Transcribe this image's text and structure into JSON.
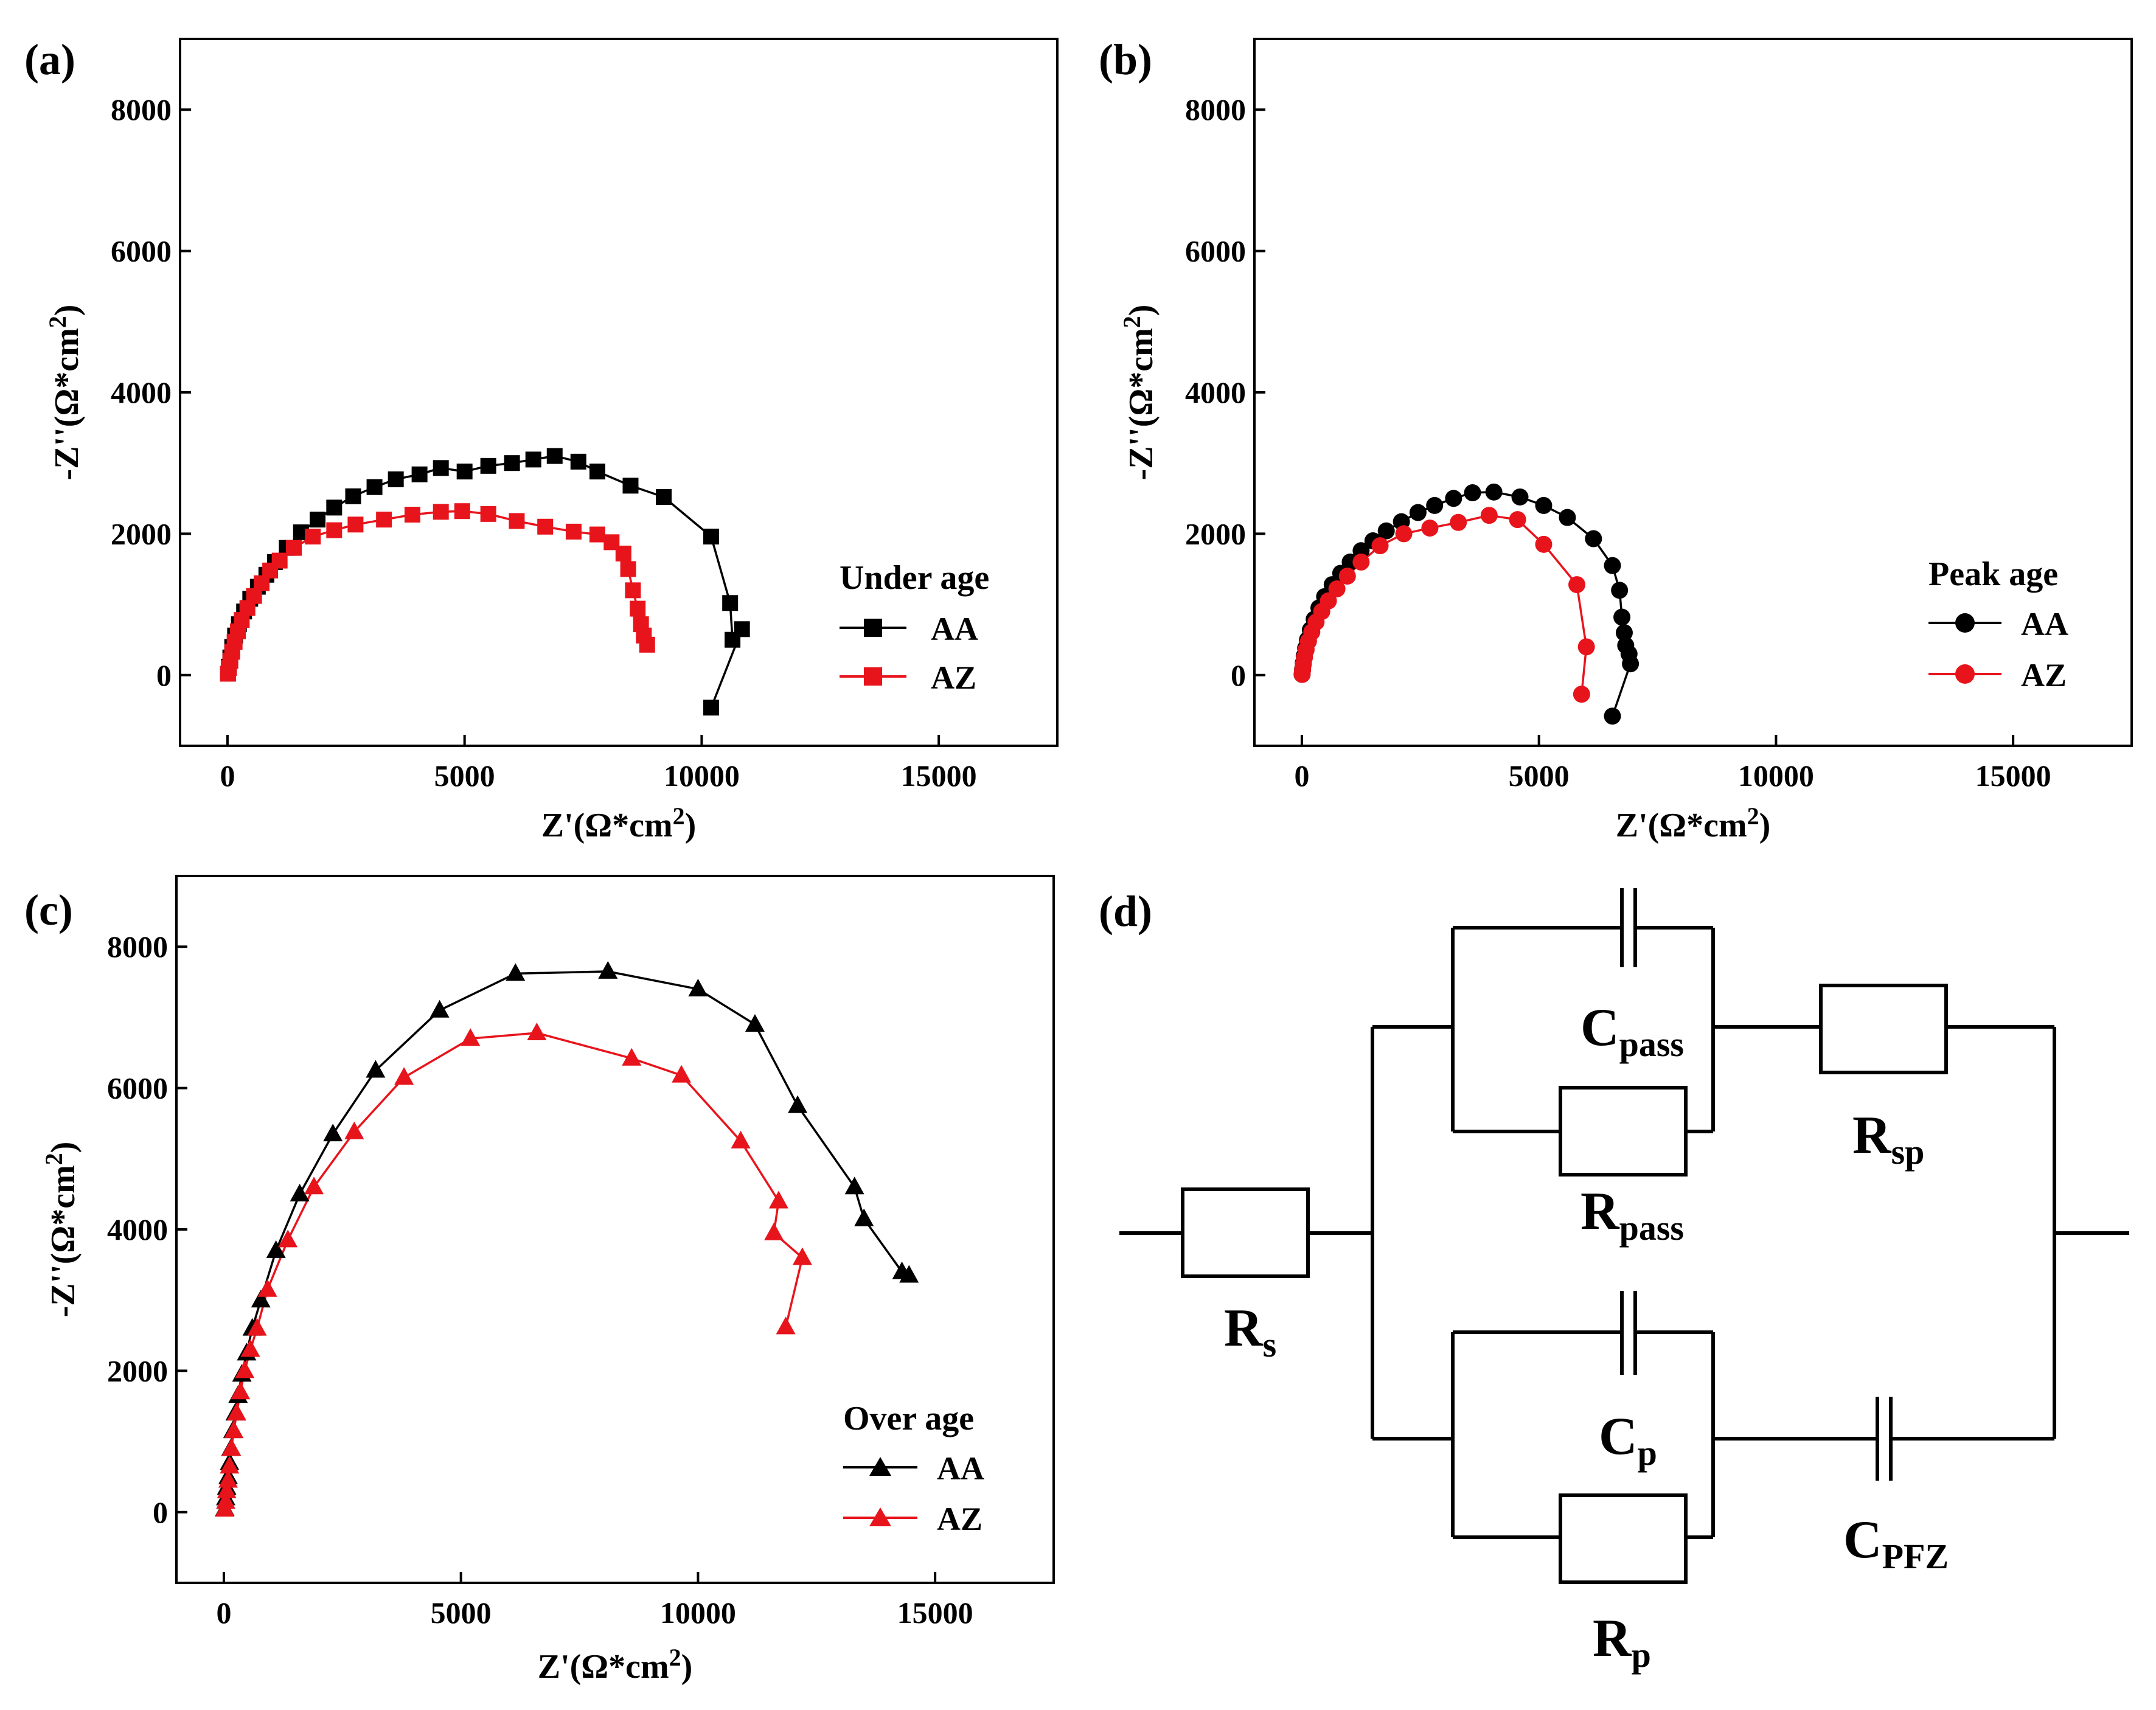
{
  "panels": {
    "a": {
      "label": "(a)"
    },
    "b": {
      "label": "(b)"
    },
    "c": {
      "label": "(c)"
    },
    "d": {
      "label": "(d)"
    }
  },
  "chart_data": [
    {
      "id": "a",
      "type": "scatter",
      "title": "",
      "xlabel": "Z'(Ω*cm2)",
      "ylabel": "-Z''(Ω*cm2)",
      "xlim": [
        -1000,
        17500
      ],
      "ylim": [
        -1000,
        9000
      ],
      "xticks": [
        0,
        5000,
        10000,
        15000
      ],
      "yticks": [
        0,
        2000,
        4000,
        6000,
        8000
      ],
      "marker": "square",
      "legend_title": "Under age",
      "legend_position": "right",
      "series": [
        {
          "name": "AA",
          "color": "#000000",
          "points": [
            [
              10,
              20
            ],
            [
              30,
              120
            ],
            [
              60,
              250
            ],
            [
              100,
              400
            ],
            [
              160,
              560
            ],
            [
              240,
              720
            ],
            [
              350,
              900
            ],
            [
              480,
              1080
            ],
            [
              640,
              1250
            ],
            [
              820,
              1420
            ],
            [
              1000,
              1600
            ],
            [
              1250,
              1800
            ],
            [
              1550,
              2020
            ],
            [
              1900,
              2200
            ],
            [
              2250,
              2370
            ],
            [
              2650,
              2530
            ],
            [
              3100,
              2660
            ],
            [
              3550,
              2770
            ],
            [
              4050,
              2840
            ],
            [
              4500,
              2930
            ],
            [
              5000,
              2880
            ],
            [
              5500,
              2960
            ],
            [
              6000,
              3000
            ],
            [
              6450,
              3050
            ],
            [
              6900,
              3100
            ],
            [
              7400,
              3020
            ],
            [
              7800,
              2880
            ],
            [
              8500,
              2680
            ],
            [
              9200,
              2520
            ],
            [
              10200,
              1960
            ],
            [
              10600,
              1020
            ],
            [
              10650,
              500
            ],
            [
              10850,
              650
            ],
            [
              10200,
              -460
            ]
          ]
        },
        {
          "name": "AZ",
          "color": "#e8141c",
          "points": [
            [
              10,
              20
            ],
            [
              30,
              100
            ],
            [
              60,
              200
            ],
            [
              100,
              330
            ],
            [
              150,
              470
            ],
            [
              220,
              620
            ],
            [
              300,
              780
            ],
            [
              420,
              950
            ],
            [
              560,
              1120
            ],
            [
              720,
              1300
            ],
            [
              900,
              1480
            ],
            [
              1100,
              1620
            ],
            [
              1400,
              1800
            ],
            [
              1800,
              1960
            ],
            [
              2250,
              2050
            ],
            [
              2700,
              2130
            ],
            [
              3300,
              2200
            ],
            [
              3900,
              2270
            ],
            [
              4500,
              2310
            ],
            [
              4950,
              2320
            ],
            [
              5500,
              2280
            ],
            [
              6100,
              2180
            ],
            [
              6700,
              2100
            ],
            [
              7300,
              2030
            ],
            [
              7800,
              1990
            ],
            [
              8100,
              1880
            ],
            [
              8350,
              1720
            ],
            [
              8450,
              1500
            ],
            [
              8550,
              1200
            ],
            [
              8650,
              940
            ],
            [
              8720,
              720
            ],
            [
              8780,
              560
            ],
            [
              8850,
              430
            ]
          ]
        }
      ]
    },
    {
      "id": "b",
      "type": "scatter",
      "title": "",
      "xlabel": "Z'(Ω*cm2)",
      "ylabel": "-Z''(Ω*cm2)",
      "xlim": [
        -1000,
        17500
      ],
      "ylim": [
        -1000,
        9000
      ],
      "xticks": [
        0,
        5000,
        10000,
        15000
      ],
      "yticks": [
        0,
        2000,
        4000,
        6000,
        8000
      ],
      "marker": "circle",
      "legend_title": "Peak age",
      "legend_position": "right",
      "series": [
        {
          "name": "AA",
          "color": "#000000",
          "points": [
            [
              5,
              10
            ],
            [
              15,
              80
            ],
            [
              30,
              170
            ],
            [
              50,
              270
            ],
            [
              80,
              380
            ],
            [
              120,
              500
            ],
            [
              180,
              640
            ],
            [
              260,
              790
            ],
            [
              360,
              950
            ],
            [
              480,
              1110
            ],
            [
              640,
              1280
            ],
            [
              820,
              1440
            ],
            [
              1020,
              1600
            ],
            [
              1250,
              1760
            ],
            [
              1500,
              1900
            ],
            [
              1780,
              2040
            ],
            [
              2100,
              2170
            ],
            [
              2450,
              2300
            ],
            [
              2800,
              2400
            ],
            [
              3200,
              2500
            ],
            [
              3600,
              2580
            ],
            [
              4050,
              2590
            ],
            [
              4600,
              2520
            ],
            [
              5100,
              2400
            ],
            [
              5600,
              2230
            ],
            [
              6150,
              1930
            ],
            [
              6550,
              1550
            ],
            [
              6700,
              1200
            ],
            [
              6750,
              820
            ],
            [
              6800,
              600
            ],
            [
              6830,
              420
            ],
            [
              6900,
              300
            ],
            [
              6930,
              160
            ],
            [
              6550,
              -580
            ]
          ]
        },
        {
          "name": "AZ",
          "color": "#e8141c",
          "points": [
            [
              5,
              10
            ],
            [
              15,
              70
            ],
            [
              30,
              150
            ],
            [
              55,
              250
            ],
            [
              90,
              360
            ],
            [
              140,
              480
            ],
            [
              210,
              610
            ],
            [
              300,
              750
            ],
            [
              420,
              900
            ],
            [
              560,
              1050
            ],
            [
              740,
              1220
            ],
            [
              960,
              1400
            ],
            [
              1250,
              1600
            ],
            [
              1650,
              1830
            ],
            [
              2150,
              2000
            ],
            [
              2700,
              2080
            ],
            [
              3300,
              2160
            ],
            [
              3950,
              2260
            ],
            [
              4550,
              2200
            ],
            [
              5100,
              1850
            ],
            [
              5800,
              1280
            ],
            [
              6000,
              400
            ],
            [
              5900,
              -270
            ]
          ]
        }
      ]
    },
    {
      "id": "c",
      "type": "scatter",
      "title": "",
      "xlabel": "Z'(Ω*cm2)",
      "ylabel": "-Z''(Ω*cm2)",
      "xlim": [
        -1000,
        17500
      ],
      "ylim": [
        -1000,
        9000
      ],
      "xticks": [
        0,
        5000,
        10000,
        15000
      ],
      "yticks": [
        0,
        2000,
        4000,
        6000,
        8000
      ],
      "marker": "triangle",
      "legend_title": "Over age",
      "legend_position": "bottom-right",
      "series": [
        {
          "name": "AA",
          "color": "#000000",
          "points": [
            [
              20,
              50
            ],
            [
              40,
              200
            ],
            [
              60,
              350
            ],
            [
              90,
              500
            ],
            [
              120,
              700
            ],
            [
              150,
              900
            ],
            [
              190,
              1150
            ],
            [
              240,
              1400
            ],
            [
              300,
              1650
            ],
            [
              380,
              1950
            ],
            [
              480,
              2250
            ],
            [
              600,
              2600
            ],
            [
              780,
              3000
            ],
            [
              1100,
              3700
            ],
            [
              1600,
              4500
            ],
            [
              2300,
              5350
            ],
            [
              3200,
              6250
            ],
            [
              4550,
              7100
            ],
            [
              6150,
              7620
            ],
            [
              8100,
              7650
            ],
            [
              10000,
              7400
            ],
            [
              11200,
              6900
            ],
            [
              12100,
              5750
            ],
            [
              13300,
              4600
            ],
            [
              13500,
              4150
            ],
            [
              14300,
              3400
            ],
            [
              14450,
              3350
            ]
          ]
        },
        {
          "name": "AZ",
          "color": "#e8141c",
          "points": [
            [
              20,
              40
            ],
            [
              40,
              150
            ],
            [
              60,
              300
            ],
            [
              90,
              450
            ],
            [
              120,
              650
            ],
            [
              160,
              900
            ],
            [
              210,
              1150
            ],
            [
              270,
              1400
            ],
            [
              350,
              1700
            ],
            [
              440,
              2000
            ],
            [
              560,
              2300
            ],
            [
              700,
              2600
            ],
            [
              920,
              3150
            ],
            [
              1350,
              3850
            ],
            [
              1900,
              4600
            ],
            [
              2750,
              5380
            ],
            [
              3800,
              6150
            ],
            [
              5200,
              6700
            ],
            [
              6600,
              6780
            ],
            [
              8600,
              6420
            ],
            [
              9650,
              6180
            ],
            [
              10900,
              5250
            ],
            [
              11700,
              4400
            ],
            [
              11600,
              3950
            ],
            [
              12200,
              3600
            ],
            [
              11850,
              2620
            ]
          ]
        }
      ]
    }
  ],
  "circuit": {
    "R_s": "R",
    "R_s_sub": "s",
    "C_pass": "C",
    "C_pass_sub": "pass",
    "R_sp": "R",
    "R_sp_sub": "sp",
    "R_pass": "R",
    "R_pass_sub": "pass",
    "C_p": "C",
    "C_p_sub": "p",
    "C_PFZ": "C",
    "C_PFZ_sub": "PFZ",
    "R_p": "R",
    "R_p_sub": "p"
  }
}
